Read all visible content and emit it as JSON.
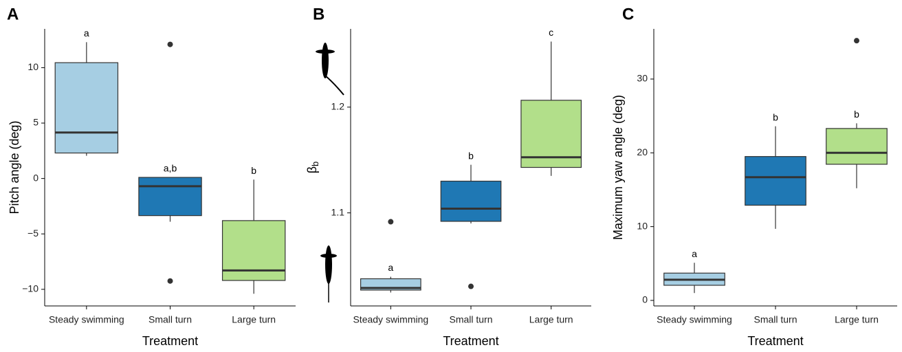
{
  "chart_data": [
    {
      "type": "box",
      "panel": "A",
      "ylabel": "Pitch angle (deg)",
      "xlabel": "Treatment",
      "categories": [
        "Steady swimming",
        "Small turn",
        "Large turn"
      ],
      "ylim": [
        -11.5,
        13.5
      ],
      "yticks": [
        {
          "value": -10,
          "label": "−10"
        },
        {
          "value": -5,
          "label": "−5"
        },
        0,
        5,
        10
      ],
      "boxes": [
        {
          "whislo": 2.05,
          "q1": 2.3,
          "med": 4.15,
          "q3": 10.45,
          "whishi": 12.3,
          "fliers": [],
          "letter": "a",
          "color": "#a6cee3"
        },
        {
          "whislo": -3.9,
          "q1": -3.35,
          "med": -0.7,
          "q3": 0.1,
          "whishi": 0.1,
          "fliers": [
            12.1,
            -9.25
          ],
          "letter": "a,b",
          "color": "#1f78b4"
        },
        {
          "whislo": -10.4,
          "q1": -9.2,
          "med": -8.3,
          "q3": -3.8,
          "whishi": -0.1,
          "fliers": [],
          "letter": "b",
          "color": "#b2df8a"
        }
      ]
    },
    {
      "type": "box",
      "panel": "B",
      "ylabel": "β",
      "ylabel_sub": "b",
      "xlabel": "Treatment",
      "categories": [
        "Steady swimming",
        "Small turn",
        "Large turn"
      ],
      "ylim": [
        1.012,
        1.274
      ],
      "yticks": [
        1.1,
        1.2
      ],
      "boxes": [
        {
          "whislo": 1.0247,
          "q1": 1.027,
          "med": 1.029,
          "q3": 1.0377,
          "whishi": 1.0396,
          "fliers": [
            1.0916
          ],
          "letter": "a",
          "color": "#a6cee3"
        },
        {
          "whislo": 1.09,
          "q1": 1.092,
          "med": 1.104,
          "q3": 1.13,
          "whishi": 1.1455,
          "fliers": [
            1.0305
          ],
          "letter": "b",
          "color": "#1f78b4"
        },
        {
          "whislo": 1.135,
          "q1": 1.143,
          "med": 1.1526,
          "q3": 1.2065,
          "whishi": 1.262,
          "fliers": [],
          "letter": "c",
          "color": "#b2df8a"
        }
      ]
    },
    {
      "type": "box",
      "panel": "C",
      "ylabel": "Maximum yaw angle (deg)",
      "xlabel": "Treatment",
      "categories": [
        "Steady swimming",
        "Small turn",
        "Large turn"
      ],
      "ylim": [
        -0.75,
        36.8
      ],
      "yticks": [
        0,
        10,
        20,
        30
      ],
      "boxes": [
        {
          "whislo": 1.0,
          "q1": 2.05,
          "med": 2.8,
          "q3": 3.7,
          "whishi": 5.1,
          "fliers": [],
          "letter": "a",
          "color": "#a6cee3"
        },
        {
          "whislo": 9.7,
          "q1": 12.9,
          "med": 16.7,
          "q3": 19.5,
          "whishi": 23.6,
          "fliers": [],
          "letter": "b",
          "color": "#1f78b4"
        },
        {
          "whislo": 15.2,
          "q1": 18.45,
          "med": 20.0,
          "q3": 23.3,
          "whishi": 24.0,
          "fliers": [
            35.2
          ],
          "letter": "b",
          "color": "#b2df8a"
        }
      ]
    }
  ]
}
